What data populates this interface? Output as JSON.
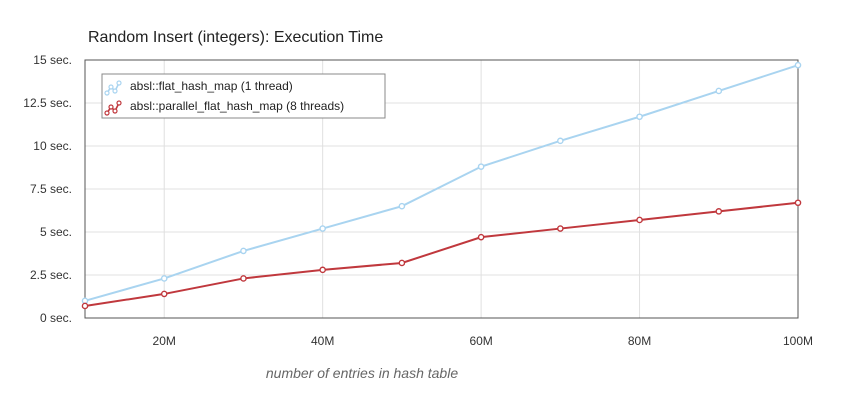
{
  "chart_data": {
    "type": "line",
    "title": "Random Insert (integers): Execution Time",
    "xlabel": "number of entries in hash table",
    "ylabel": "",
    "xlim": [
      10,
      100
    ],
    "ylim": [
      0,
      15
    ],
    "x": [
      10,
      20,
      30,
      40,
      50,
      60,
      70,
      80,
      90,
      100
    ],
    "x_ticks": [
      20,
      40,
      60,
      80,
      100
    ],
    "x_tick_labels": [
      "20M",
      "40M",
      "60M",
      "80M",
      "100M"
    ],
    "y_ticks": [
      0,
      2.5,
      5,
      7.5,
      10,
      12.5,
      15
    ],
    "y_tick_labels": [
      "0 sec.",
      "2.5 sec.",
      "5 sec.",
      "7.5 sec.",
      "10 sec.",
      "12.5 sec.",
      "15 sec."
    ],
    "grid": true,
    "legend_position": "top-left",
    "series": [
      {
        "name": "absl::flat_hash_map (1 thread)",
        "color": "#a9d4f0",
        "values": [
          1.0,
          2.3,
          3.9,
          5.2,
          6.5,
          8.8,
          10.3,
          11.7,
          13.2,
          14.7
        ]
      },
      {
        "name": "absl::parallel_flat_hash_map (8 threads)",
        "color": "#c0383d",
        "values": [
          0.7,
          1.4,
          2.3,
          2.8,
          3.2,
          4.7,
          5.2,
          5.7,
          6.2,
          6.7
        ]
      }
    ]
  }
}
